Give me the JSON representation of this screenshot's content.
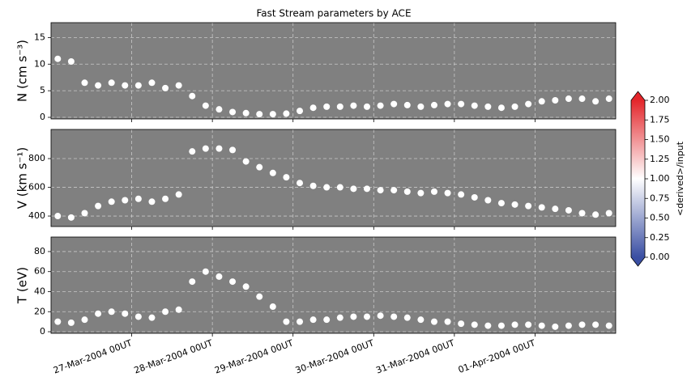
{
  "title": "Fast Stream parameters by ACE",
  "chart_data": [
    {
      "type": "scatter",
      "ylabel": "N (cm s⁻³)",
      "color": "#ffffff",
      "background": "#808080",
      "grid": true,
      "x": [
        "2004-03-26T02",
        "2004-03-26T06",
        "2004-03-26T10",
        "2004-03-26T14",
        "2004-03-26T18",
        "2004-03-26T22",
        "2004-03-27T02",
        "2004-03-27T06",
        "2004-03-27T10",
        "2004-03-27T14",
        "2004-03-27T18",
        "2004-03-27T22",
        "2004-03-28T02",
        "2004-03-28T06",
        "2004-03-28T10",
        "2004-03-28T14",
        "2004-03-28T18",
        "2004-03-28T22",
        "2004-03-29T02",
        "2004-03-29T06",
        "2004-03-29T10",
        "2004-03-29T14",
        "2004-03-29T18",
        "2004-03-29T22",
        "2004-03-30T02",
        "2004-03-30T06",
        "2004-03-30T10",
        "2004-03-30T14",
        "2004-03-30T18",
        "2004-03-30T22",
        "2004-03-31T02",
        "2004-03-31T06",
        "2004-03-31T10",
        "2004-03-31T14",
        "2004-03-31T18",
        "2004-03-31T22",
        "2004-04-01T02",
        "2004-04-01T06",
        "2004-04-01T10",
        "2004-04-01T14",
        "2004-04-01T18",
        "2004-04-01T22"
      ],
      "values": [
        11,
        10.5,
        6.5,
        6,
        6.5,
        6,
        6,
        6.5,
        5.5,
        6,
        4,
        2.2,
        1.5,
        1,
        0.8,
        0.6,
        0.6,
        0.7,
        1.2,
        1.8,
        2,
        2,
        2.2,
        2,
        2.2,
        2.5,
        2.3,
        2,
        2.3,
        2.5,
        2.5,
        2.2,
        2,
        1.8,
        2,
        2.5,
        3,
        3.2,
        3.5,
        3.5,
        3,
        3.5
      ],
      "ylim": [
        -0.3,
        17.8
      ],
      "yticks": [
        0,
        5,
        10,
        15
      ]
    },
    {
      "type": "scatter",
      "ylabel": "V (km s⁻¹)",
      "color": "#ffffff",
      "background": "#808080",
      "grid": true,
      "x": [
        "2004-03-26T02",
        "2004-03-26T06",
        "2004-03-26T10",
        "2004-03-26T14",
        "2004-03-26T18",
        "2004-03-26T22",
        "2004-03-27T02",
        "2004-03-27T06",
        "2004-03-27T10",
        "2004-03-27T14",
        "2004-03-27T18",
        "2004-03-27T22",
        "2004-03-28T02",
        "2004-03-28T06",
        "2004-03-28T10",
        "2004-03-28T14",
        "2004-03-28T18",
        "2004-03-28T22",
        "2004-03-29T02",
        "2004-03-29T06",
        "2004-03-29T10",
        "2004-03-29T14",
        "2004-03-29T18",
        "2004-03-29T22",
        "2004-03-30T02",
        "2004-03-30T06",
        "2004-03-30T10",
        "2004-03-30T14",
        "2004-03-30T18",
        "2004-03-30T22",
        "2004-03-31T02",
        "2004-03-31T06",
        "2004-03-31T10",
        "2004-03-31T14",
        "2004-03-31T18",
        "2004-03-31T22",
        "2004-04-01T02",
        "2004-04-01T06",
        "2004-04-01T10",
        "2004-04-01T14",
        "2004-04-01T18",
        "2004-04-01T22"
      ],
      "values": [
        400,
        390,
        420,
        470,
        500,
        510,
        520,
        500,
        520,
        550,
        850,
        870,
        870,
        860,
        780,
        740,
        700,
        670,
        630,
        610,
        600,
        600,
        590,
        590,
        580,
        580,
        570,
        560,
        570,
        560,
        550,
        530,
        510,
        490,
        480,
        470,
        460,
        450,
        440,
        420,
        410,
        420
      ],
      "ylim": [
        327,
        1003
      ],
      "yticks": [
        400,
        600,
        800
      ]
    },
    {
      "type": "scatter",
      "ylabel": "T (eV)",
      "color": "#ffffff",
      "background": "#808080",
      "grid": true,
      "x": [
        "2004-03-26T02",
        "2004-03-26T06",
        "2004-03-26T10",
        "2004-03-26T14",
        "2004-03-26T18",
        "2004-03-26T22",
        "2004-03-27T02",
        "2004-03-27T06",
        "2004-03-27T10",
        "2004-03-27T14",
        "2004-03-27T18",
        "2004-03-27T22",
        "2004-03-28T02",
        "2004-03-28T06",
        "2004-03-28T10",
        "2004-03-28T14",
        "2004-03-28T18",
        "2004-03-28T22",
        "2004-03-29T02",
        "2004-03-29T06",
        "2004-03-29T10",
        "2004-03-29T14",
        "2004-03-29T18",
        "2004-03-29T22",
        "2004-03-30T02",
        "2004-03-30T06",
        "2004-03-30T10",
        "2004-03-30T14",
        "2004-03-30T18",
        "2004-03-30T22",
        "2004-03-31T02",
        "2004-03-31T06",
        "2004-03-31T10",
        "2004-03-31T14",
        "2004-03-31T18",
        "2004-03-31T22",
        "2004-04-01T02",
        "2004-04-01T06",
        "2004-04-01T10",
        "2004-04-01T14",
        "2004-04-01T18",
        "2004-04-01T22"
      ],
      "values": [
        10,
        9,
        12,
        18,
        20,
        18,
        15,
        14,
        20,
        22,
        50,
        60,
        55,
        50,
        45,
        35,
        25,
        10,
        10,
        12,
        12,
        14,
        15,
        15,
        16,
        15,
        14,
        12,
        10,
        10,
        8,
        7,
        6,
        6,
        7,
        7,
        6,
        5,
        6,
        7,
        7,
        6
      ],
      "ylim": [
        -1.6,
        94.5
      ],
      "yticks": [
        0,
        20,
        40,
        60,
        80
      ],
      "xlim": [
        "2004-03-26T00",
        "2004-04-02T00"
      ],
      "xticks": [
        {
          "value": "2004-03-27T00",
          "label": "27-Mar-2004 00UT"
        },
        {
          "value": "2004-03-28T00",
          "label": "28-Mar-2004 00UT"
        },
        {
          "value": "2004-03-29T00",
          "label": "29-Mar-2004 00UT"
        },
        {
          "value": "2004-03-30T00",
          "label": "30-Mar-2004 00UT"
        },
        {
          "value": "2004-03-31T00",
          "label": "31-Mar-2004 00UT"
        },
        {
          "value": "2004-04-01T00",
          "label": "01-Apr-2004 00UT"
        }
      ]
    }
  ],
  "colorbar": {
    "label": "<derived>/input",
    "lim": [
      0,
      2
    ],
    "colors": [
      "#3a4fa3",
      "#ffffff",
      "#e3262b"
    ],
    "ticks": [
      {
        "value": 0,
        "label": "0.00"
      },
      {
        "value": 0.25,
        "label": "0.25"
      },
      {
        "value": 0.5,
        "label": "0.50"
      },
      {
        "value": 0.75,
        "label": "0.75"
      },
      {
        "value": 1,
        "label": "1.00"
      },
      {
        "value": 1.25,
        "label": "1.25"
      },
      {
        "value": 1.5,
        "label": "1.50"
      },
      {
        "value": 1.75,
        "label": "1.75"
      },
      {
        "value": 2,
        "label": "2.00"
      }
    ]
  }
}
